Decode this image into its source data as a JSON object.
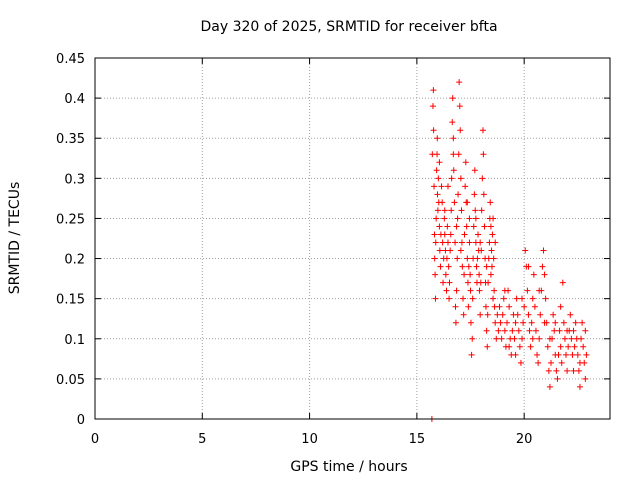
{
  "chart_data": {
    "type": "scatter",
    "title": "Day 320 of 2025, SRMTID for receiver bfta",
    "xlabel": "GPS time / hours",
    "ylabel": "SRMTID / TECUs",
    "xlim": [
      0,
      24
    ],
    "ylim": [
      0,
      0.45
    ],
    "xticks": [
      0,
      5,
      10,
      15,
      20
    ],
    "xtick_labels": [
      "0",
      "5",
      "10",
      "15",
      "20"
    ],
    "yticks": [
      0,
      0.05,
      0.1,
      0.15,
      0.2,
      0.25,
      0.3,
      0.35,
      0.4,
      0.45
    ],
    "ytick_labels": [
      "0",
      "0.05",
      "0.1",
      "0.15",
      "0.2",
      "0.25",
      "0.3",
      "0.35",
      "0.4",
      "0.45"
    ],
    "grid": true,
    "marker": "+",
    "color": "#ff0000",
    "series": [
      {
        "name": "SRMTID",
        "points": [
          [
            15.7,
            0.0
          ],
          [
            15.72,
            0.33
          ],
          [
            15.75,
            0.39
          ],
          [
            15.77,
            0.41
          ],
          [
            15.78,
            0.36
          ],
          [
            15.8,
            0.29
          ],
          [
            15.82,
            0.23
          ],
          [
            15.83,
            0.2
          ],
          [
            15.85,
            0.18
          ],
          [
            15.87,
            0.15
          ],
          [
            15.88,
            0.22
          ],
          [
            15.9,
            0.25
          ],
          [
            15.92,
            0.31
          ],
          [
            15.94,
            0.33
          ],
          [
            15.96,
            0.28
          ],
          [
            15.98,
            0.26
          ],
          [
            16.0,
            0.3
          ],
          [
            16.02,
            0.27
          ],
          [
            16.05,
            0.24
          ],
          [
            16.07,
            0.21
          ],
          [
            16.1,
            0.19
          ],
          [
            16.12,
            0.23
          ],
          [
            16.15,
            0.29
          ],
          [
            16.18,
            0.27
          ],
          [
            16.2,
            0.22
          ],
          [
            16.22,
            0.17
          ],
          [
            16.25,
            0.2
          ],
          [
            16.28,
            0.25
          ],
          [
            16.3,
            0.23
          ],
          [
            16.33,
            0.21
          ],
          [
            16.35,
            0.18
          ],
          [
            16.38,
            0.16
          ],
          [
            16.4,
            0.2
          ],
          [
            16.42,
            0.24
          ],
          [
            16.45,
            0.22
          ],
          [
            16.48,
            0.19
          ],
          [
            16.5,
            0.15
          ],
          [
            16.52,
            0.17
          ],
          [
            16.55,
            0.21
          ],
          [
            16.58,
            0.23
          ],
          [
            16.6,
            0.26
          ],
          [
            16.62,
            0.3
          ],
          [
            16.65,
            0.37
          ],
          [
            16.67,
            0.4
          ],
          [
            16.7,
            0.35
          ],
          [
            16.72,
            0.31
          ],
          [
            16.75,
            0.27
          ],
          [
            16.78,
            0.22
          ],
          [
            16.8,
            0.14
          ],
          [
            16.82,
            0.12
          ],
          [
            16.85,
            0.16
          ],
          [
            16.88,
            0.2
          ],
          [
            16.9,
            0.25
          ],
          [
            16.92,
            0.28
          ],
          [
            16.95,
            0.33
          ],
          [
            16.97,
            0.42
          ],
          [
            17.0,
            0.39
          ],
          [
            17.02,
            0.36
          ],
          [
            17.05,
            0.3
          ],
          [
            17.08,
            0.26
          ],
          [
            17.1,
            0.22
          ],
          [
            17.12,
            0.19
          ],
          [
            17.15,
            0.15
          ],
          [
            17.18,
            0.13
          ],
          [
            17.2,
            0.18
          ],
          [
            17.22,
            0.23
          ],
          [
            17.25,
            0.29
          ],
          [
            17.28,
            0.32
          ],
          [
            17.3,
            0.27
          ],
          [
            17.32,
            0.24
          ],
          [
            17.35,
            0.2
          ],
          [
            17.38,
            0.17
          ],
          [
            17.4,
            0.14
          ],
          [
            17.42,
            0.19
          ],
          [
            17.45,
            0.22
          ],
          [
            17.48,
            0.18
          ],
          [
            17.5,
            0.16
          ],
          [
            17.52,
            0.12
          ],
          [
            17.55,
            0.08
          ],
          [
            17.58,
            0.1
          ],
          [
            17.6,
            0.15
          ],
          [
            17.62,
            0.2
          ],
          [
            17.65,
            0.24
          ],
          [
            17.68,
            0.28
          ],
          [
            17.7,
            0.31
          ],
          [
            17.72,
            0.26
          ],
          [
            17.75,
            0.22
          ],
          [
            17.78,
            0.19
          ],
          [
            17.8,
            0.17
          ],
          [
            17.82,
            0.2
          ],
          [
            17.85,
            0.23
          ],
          [
            17.88,
            0.21
          ],
          [
            17.9,
            0.18
          ],
          [
            17.92,
            0.16
          ],
          [
            17.95,
            0.13
          ],
          [
            17.98,
            0.17
          ],
          [
            18.0,
            0.21
          ],
          [
            18.02,
            0.26
          ],
          [
            18.05,
            0.3
          ],
          [
            18.08,
            0.36
          ],
          [
            18.1,
            0.33
          ],
          [
            18.12,
            0.28
          ],
          [
            18.15,
            0.24
          ],
          [
            18.18,
            0.2
          ],
          [
            18.2,
            0.17
          ],
          [
            18.22,
            0.14
          ],
          [
            18.25,
            0.11
          ],
          [
            18.28,
            0.09
          ],
          [
            18.3,
            0.13
          ],
          [
            18.32,
            0.17
          ],
          [
            18.35,
            0.2
          ],
          [
            18.38,
            0.22
          ],
          [
            18.4,
            0.25
          ],
          [
            18.42,
            0.27
          ],
          [
            18.45,
            0.24
          ],
          [
            18.48,
            0.21
          ],
          [
            18.5,
            0.19
          ],
          [
            18.52,
            0.23
          ],
          [
            18.55,
            0.25
          ],
          [
            18.58,
            0.2
          ],
          [
            18.6,
            0.16
          ],
          [
            18.62,
            0.14
          ],
          [
            18.65,
            0.12
          ],
          [
            18.7,
            0.1
          ],
          [
            18.75,
            0.13
          ],
          [
            18.8,
            0.11
          ],
          [
            18.85,
            0.14
          ],
          [
            18.9,
            0.12
          ],
          [
            18.95,
            0.1
          ],
          [
            19.0,
            0.13
          ],
          [
            19.05,
            0.15
          ],
          [
            19.1,
            0.11
          ],
          [
            19.15,
            0.09
          ],
          [
            19.2,
            0.12
          ],
          [
            19.25,
            0.16
          ],
          [
            19.3,
            0.14
          ],
          [
            19.35,
            0.1
          ],
          [
            19.4,
            0.08
          ],
          [
            19.45,
            0.11
          ],
          [
            19.5,
            0.13
          ],
          [
            19.55,
            0.1
          ],
          [
            19.6,
            0.12
          ],
          [
            19.65,
            0.15
          ],
          [
            19.7,
            0.13
          ],
          [
            19.75,
            0.11
          ],
          [
            19.8,
            0.09
          ],
          [
            19.85,
            0.07
          ],
          [
            19.9,
            0.1
          ],
          [
            19.95,
            0.12
          ],
          [
            20.0,
            0.14
          ],
          [
            20.05,
            0.21
          ],
          [
            20.1,
            0.19
          ],
          [
            20.15,
            0.16
          ],
          [
            20.2,
            0.13
          ],
          [
            20.25,
            0.11
          ],
          [
            20.3,
            0.09
          ],
          [
            20.35,
            0.12
          ],
          [
            20.4,
            0.15
          ],
          [
            20.45,
            0.18
          ],
          [
            20.5,
            0.14
          ],
          [
            20.55,
            0.11
          ],
          [
            20.6,
            0.08
          ],
          [
            20.65,
            0.07
          ],
          [
            20.7,
            0.1
          ],
          [
            20.75,
            0.13
          ],
          [
            20.8,
            0.16
          ],
          [
            20.85,
            0.19
          ],
          [
            20.9,
            0.21
          ],
          [
            20.95,
            0.18
          ],
          [
            21.0,
            0.15
          ],
          [
            21.05,
            0.12
          ],
          [
            21.1,
            0.09
          ],
          [
            21.15,
            0.06
          ],
          [
            21.2,
            0.04
          ],
          [
            21.25,
            0.07
          ],
          [
            21.3,
            0.1
          ],
          [
            21.35,
            0.13
          ],
          [
            21.4,
            0.11
          ],
          [
            21.45,
            0.08
          ],
          [
            21.5,
            0.06
          ],
          [
            21.55,
            0.05
          ],
          [
            21.6,
            0.08
          ],
          [
            21.65,
            0.11
          ],
          [
            21.7,
            0.09
          ],
          [
            21.75,
            0.07
          ],
          [
            21.8,
            0.17
          ],
          [
            21.85,
            0.12
          ],
          [
            21.9,
            0.1
          ],
          [
            21.95,
            0.08
          ],
          [
            22.0,
            0.06
          ],
          [
            22.05,
            0.09
          ],
          [
            22.1,
            0.11
          ],
          [
            22.15,
            0.13
          ],
          [
            22.2,
            0.1
          ],
          [
            22.25,
            0.08
          ],
          [
            22.3,
            0.06
          ],
          [
            22.35,
            0.09
          ],
          [
            22.4,
            0.12
          ],
          [
            22.45,
            0.1
          ],
          [
            22.5,
            0.08
          ],
          [
            22.55,
            0.06
          ],
          [
            22.6,
            0.07
          ],
          [
            22.65,
            0.1
          ],
          [
            22.7,
            0.12
          ],
          [
            22.75,
            0.09
          ],
          [
            22.8,
            0.07
          ],
          [
            22.85,
            0.05
          ],
          [
            22.9,
            0.08
          ],
          [
            15.95,
            0.35
          ],
          [
            16.05,
            0.32
          ],
          [
            16.3,
            0.26
          ],
          [
            16.45,
            0.29
          ],
          [
            16.7,
            0.33
          ],
          [
            16.85,
            0.24
          ],
          [
            17.05,
            0.21
          ],
          [
            17.35,
            0.27
          ],
          [
            17.45,
            0.25
          ],
          [
            17.75,
            0.25
          ],
          [
            17.95,
            0.22
          ],
          [
            18.25,
            0.19
          ],
          [
            18.45,
            0.18
          ],
          [
            18.55,
            0.15
          ],
          [
            18.65,
            0.22
          ],
          [
            19.1,
            0.16
          ],
          [
            19.3,
            0.09
          ],
          [
            19.6,
            0.08
          ],
          [
            19.9,
            0.15
          ],
          [
            20.2,
            0.19
          ],
          [
            20.4,
            0.1
          ],
          [
            20.7,
            0.16
          ],
          [
            20.95,
            0.12
          ],
          [
            21.2,
            0.1
          ],
          [
            21.45,
            0.12
          ],
          [
            21.7,
            0.14
          ],
          [
            22.0,
            0.11
          ],
          [
            22.3,
            0.11
          ],
          [
            22.6,
            0.04
          ],
          [
            22.85,
            0.11
          ]
        ]
      }
    ]
  }
}
